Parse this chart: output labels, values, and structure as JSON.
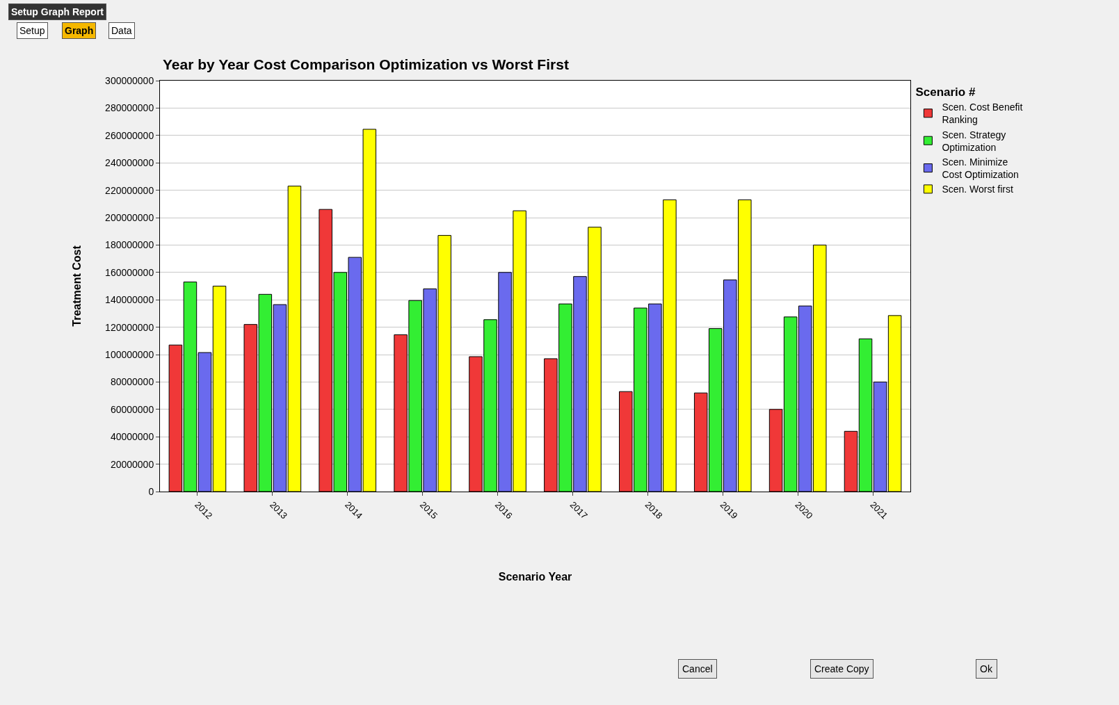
{
  "chart_data": {
    "type": "bar",
    "title": "Year by Year Cost Comparison Optimization vs Worst First",
    "xlabel": "Scenario Year",
    "ylabel": "Treatment Cost",
    "legend_title": "Scenario #",
    "categories": [
      "2012",
      "2013",
      "2014",
      "2015",
      "2016",
      "2017",
      "2018",
      "2019",
      "2020",
      "2021"
    ],
    "series": [
      {
        "name": "Scen. Cost Benefit Ranking",
        "color": "#f03838",
        "values": [
          107000000,
          122000000,
          206000000,
          114500000,
          98500000,
          97000000,
          73000000,
          72000000,
          60000000,
          44000000
        ]
      },
      {
        "name": "Scen. Strategy Optimization",
        "color": "#33ee33",
        "values": [
          153000000,
          144000000,
          160000000,
          139500000,
          125500000,
          137000000,
          134000000,
          119000000,
          127500000,
          111500000
        ]
      },
      {
        "name": "Scen. Minimize Cost Optimization",
        "color": "#6a6aee",
        "values": [
          101500000,
          136500000,
          171000000,
          148000000,
          160000000,
          157000000,
          137000000,
          154500000,
          135500000,
          80000000
        ]
      },
      {
        "name": "Scen. Worst first",
        "color": "#ffff00",
        "values": [
          150000000,
          223000000,
          264500000,
          187000000,
          205000000,
          193000000,
          213000000,
          213000000,
          180000000,
          128500000
        ]
      }
    ],
    "ylim": [
      0,
      300000000
    ],
    "yticks": [
      0,
      20000000,
      40000000,
      60000000,
      80000000,
      100000000,
      120000000,
      140000000,
      160000000,
      180000000,
      200000000,
      220000000,
      240000000,
      260000000,
      280000000,
      300000000
    ],
    "grid": "y",
    "legend": "right",
    "annotations": [
      "Setup Graph Report",
      "Setup",
      "Graph",
      "Data",
      "Cancel",
      "Create Copy",
      "Ok"
    ]
  }
}
